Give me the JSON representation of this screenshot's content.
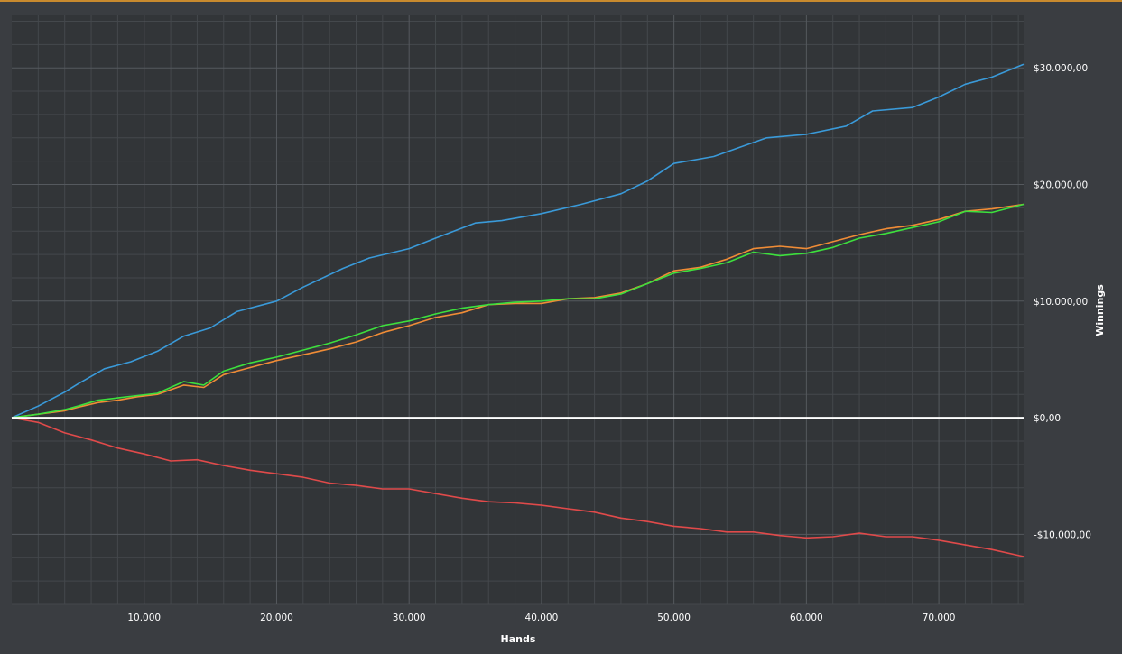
{
  "colors": {
    "background": "#3a3d41",
    "plot_background": "#323538",
    "grid_major": "#55595e",
    "grid_minor": "#44484c",
    "top_strip": "#c88a2e",
    "zero_line": "#ffffff",
    "tick_text": "#ffffff",
    "axis_title_text": "#ffffff"
  },
  "chart_data": {
    "type": "line",
    "title": "",
    "xlabel": "Hands",
    "ylabel": "Winnings",
    "xlim": [
      0,
      76400
    ],
    "ylim": [
      -16000,
      34500
    ],
    "x_ticks": [
      10000,
      20000,
      30000,
      40000,
      50000,
      60000,
      70000
    ],
    "x_tick_labels": [
      "10.000",
      "20.000",
      "30.000",
      "40.000",
      "50.000",
      "60.000",
      "70.000"
    ],
    "y_ticks": [
      -10000,
      0,
      10000,
      20000,
      30000
    ],
    "y_tick_labels": [
      "-$10.000,00",
      "$0,00",
      "$10.000,00",
      "$20.000,00",
      "$30.000,00"
    ],
    "grid": true,
    "legend": "none",
    "series": [
      {
        "color": "#3a9ad9",
        "x": [
          0,
          2000,
          4000,
          5000,
          7000,
          9000,
          11000,
          13000,
          15000,
          17000,
          20000,
          22000,
          25000,
          27000,
          30000,
          32000,
          35000,
          37000,
          40000,
          43000,
          46000,
          48000,
          50000,
          53000,
          55000,
          57000,
          60000,
          63000,
          65000,
          68000,
          70000,
          72000,
          74000,
          76400
        ],
        "values": [
          0,
          1000,
          2200,
          2900,
          4200,
          4800,
          5700,
          7000,
          7700,
          9100,
          10000,
          11200,
          12800,
          13700,
          14500,
          15400,
          16700,
          16900,
          17500,
          18300,
          19200,
          20300,
          21800,
          22400,
          23200,
          24000,
          24300,
          25000,
          26300,
          26600,
          27500,
          28600,
          29200,
          30300
        ]
      },
      {
        "color": "#f08c36",
        "x": [
          0,
          2000,
          4000,
          5000,
          6500,
          8000,
          9500,
          11000,
          13000,
          14500,
          16000,
          18000,
          20000,
          22000,
          24000,
          26000,
          28000,
          30000,
          32000,
          34000,
          36000,
          38000,
          40000,
          42000,
          44000,
          46000,
          48000,
          50000,
          52000,
          54000,
          56000,
          58000,
          60000,
          62000,
          64000,
          66000,
          68000,
          70000,
          72000,
          74000,
          76400
        ],
        "values": [
          0,
          300,
          600,
          900,
          1300,
          1500,
          1800,
          2000,
          2800,
          2600,
          3700,
          4300,
          4900,
          5400,
          5900,
          6500,
          7300,
          7900,
          8600,
          9000,
          9700,
          9800,
          9800,
          10200,
          10300,
          10700,
          11500,
          12600,
          12900,
          13600,
          14500,
          14700,
          14500,
          15100,
          15700,
          16200,
          16500,
          17000,
          17700,
          17900,
          18300
        ]
      },
      {
        "color": "#3de03d",
        "x": [
          0,
          2000,
          4000,
          5000,
          6500,
          8000,
          9500,
          11000,
          13000,
          14500,
          16000,
          18000,
          20000,
          22000,
          24000,
          26000,
          28000,
          30000,
          32000,
          34000,
          36000,
          38000,
          40000,
          42000,
          44000,
          46000,
          48000,
          50000,
          52000,
          54000,
          56000,
          58000,
          60000,
          62000,
          64000,
          66000,
          68000,
          70000,
          72000,
          74000,
          76400
        ],
        "values": [
          0,
          300,
          700,
          1000,
          1500,
          1700,
          1900,
          2100,
          3100,
          2800,
          4000,
          4700,
          5200,
          5800,
          6400,
          7100,
          7900,
          8300,
          8900,
          9400,
          9700,
          9900,
          10000,
          10200,
          10200,
          10600,
          11500,
          12400,
          12800,
          13300,
          14200,
          13900,
          14100,
          14600,
          15400,
          15800,
          16300,
          16800,
          17700,
          17600,
          18300
        ]
      },
      {
        "color": "#e04a4a",
        "x": [
          0,
          2000,
          4000,
          6000,
          8000,
          10000,
          12000,
          14000,
          16000,
          18000,
          20000,
          22000,
          24000,
          26000,
          28000,
          30000,
          32000,
          34000,
          36000,
          38000,
          40000,
          42000,
          44000,
          46000,
          48000,
          50000,
          52000,
          54000,
          56000,
          58000,
          60000,
          62000,
          64000,
          66000,
          68000,
          70000,
          72000,
          74000,
          76400
        ],
        "values": [
          0,
          -400,
          -1300,
          -1900,
          -2600,
          -3100,
          -3700,
          -3600,
          -4100,
          -4500,
          -4800,
          -5100,
          -5600,
          -5800,
          -6100,
          -6100,
          -6500,
          -6900,
          -7200,
          -7300,
          -7500,
          -7800,
          -8100,
          -8600,
          -8900,
          -9300,
          -9500,
          -9800,
          -9800,
          -10100,
          -10300,
          -10200,
          -9900,
          -10200,
          -10200,
          -10500,
          -10900,
          -11300,
          -11900
        ]
      }
    ]
  }
}
